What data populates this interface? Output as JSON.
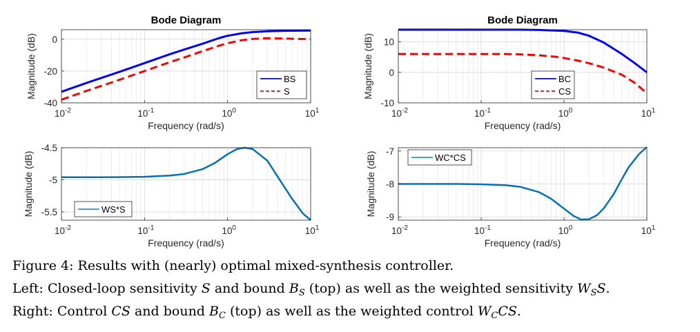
{
  "colors": {
    "blue": "#0000ff",
    "red": "#ff0000",
    "matlab_blue": "#0072bd"
  },
  "chart_data": [
    {
      "type": "line",
      "title": "Bode Diagram",
      "xlabel": "Frequency  (rad/s)",
      "ylabel": "Magnitude (dB)",
      "xscale": "log",
      "xlim": [
        0.01,
        10
      ],
      "ylim": [
        -40,
        6
      ],
      "yticks": [
        -40,
        -20,
        0
      ],
      "xtick_labels": [
        {
          "base": "10",
          "exp": "-2"
        },
        {
          "base": "10",
          "exp": "-1"
        },
        {
          "base": "10",
          "exp": "0"
        },
        {
          "base": "10",
          "exp": "1"
        }
      ],
      "grid": true,
      "legend_position": "bottom-right",
      "series": [
        {
          "name": "BS",
          "color": "#0000ff",
          "style": "solid",
          "width": 3,
          "x": [
            0.01,
            0.02,
            0.05,
            0.1,
            0.2,
            0.3,
            0.5,
            0.8,
            1,
            1.5,
            2,
            3,
            5,
            10
          ],
          "y": [
            -33,
            -27.5,
            -20.5,
            -15,
            -9.5,
            -6.5,
            -2.8,
            0.8,
            2.2,
            3.8,
            4.5,
            5,
            5.3,
            5.5
          ]
        },
        {
          "name": "S",
          "color": "#ff0000",
          "style": "dashed",
          "width": 3,
          "x": [
            0.01,
            0.02,
            0.05,
            0.1,
            0.2,
            0.3,
            0.5,
            0.8,
            1,
            1.5,
            2,
            3,
            5,
            10
          ],
          "y": [
            -38,
            -32.5,
            -25.5,
            -20,
            -14.5,
            -11.5,
            -7.5,
            -4,
            -2.5,
            -0.6,
            0.2,
            0.6,
            0.4,
            0
          ]
        }
      ]
    },
    {
      "type": "line",
      "title": "Bode Diagram",
      "xlabel": "Frequency  (rad/s)",
      "ylabel": "Magnitude (dB)",
      "xscale": "log",
      "xlim": [
        0.01,
        10
      ],
      "ylim": [
        -10,
        14
      ],
      "yticks": [
        -10,
        0,
        10
      ],
      "xtick_labels": [
        {
          "base": "10",
          "exp": "-2"
        },
        {
          "base": "10",
          "exp": "-1"
        },
        {
          "base": "10",
          "exp": "0"
        },
        {
          "base": "10",
          "exp": "1"
        }
      ],
      "grid": true,
      "legend_position": "bottom-right",
      "series": [
        {
          "name": "BC",
          "color": "#0000ff",
          "style": "solid",
          "width": 3,
          "x": [
            0.01,
            0.05,
            0.1,
            0.3,
            0.5,
            1,
            1.5,
            2,
            3,
            5,
            7,
            10
          ],
          "y": [
            14,
            14,
            14,
            14,
            13.9,
            13.6,
            13,
            12,
            9.8,
            6,
            3.2,
            0
          ]
        },
        {
          "name": "CS",
          "color": "#ff0000",
          "style": "dashed",
          "width": 3,
          "x": [
            0.01,
            0.05,
            0.1,
            0.2,
            0.3,
            0.5,
            0.8,
            1,
            1.5,
            2,
            3,
            5,
            7,
            10
          ],
          "y": [
            6,
            6,
            6,
            6,
            5.9,
            5.6,
            5.1,
            4.7,
            3.8,
            3,
            1.6,
            -0.8,
            -3.3,
            -6.8
          ]
        }
      ]
    },
    {
      "type": "line",
      "title": "",
      "xlabel": "Frequency  (rad/s)",
      "ylabel": "Magnitude (dB)",
      "xscale": "log",
      "xlim": [
        0.01,
        10
      ],
      "ylim": [
        -5.63,
        -4.5
      ],
      "yticks": [
        -5.5,
        -5,
        -4.5
      ],
      "xtick_labels": [
        {
          "base": "10",
          "exp": "-2"
        },
        {
          "base": "10",
          "exp": "-1"
        },
        {
          "base": "10",
          "exp": "0"
        },
        {
          "base": "10",
          "exp": "1"
        }
      ],
      "grid": true,
      "legend_position": "bottom-left",
      "series": [
        {
          "name": "WS*S",
          "color": "#0072bd",
          "style": "solid",
          "width": 2.5,
          "x": [
            0.01,
            0.03,
            0.05,
            0.1,
            0.2,
            0.3,
            0.5,
            0.7,
            1,
            1.3,
            1.6,
            2,
            3,
            4,
            6,
            8,
            10
          ],
          "y": [
            -4.96,
            -4.96,
            -4.958,
            -4.953,
            -4.935,
            -4.91,
            -4.835,
            -4.74,
            -4.6,
            -4.52,
            -4.5,
            -4.52,
            -4.7,
            -4.95,
            -5.3,
            -5.52,
            -5.63
          ]
        }
      ]
    },
    {
      "type": "line",
      "title": "",
      "xlabel": "Frequency  (rad/s)",
      "ylabel": "Magnitude (dB)",
      "xscale": "log",
      "xlim": [
        0.01,
        10
      ],
      "ylim": [
        -9.1,
        -6.9
      ],
      "yticks": [
        -9,
        -8,
        -7
      ],
      "xtick_labels": [
        {
          "base": "10",
          "exp": "-2"
        },
        {
          "base": "10",
          "exp": "-1"
        },
        {
          "base": "10",
          "exp": "0"
        },
        {
          "base": "10",
          "exp": "1"
        }
      ],
      "grid": true,
      "legend_position": "top-left",
      "series": [
        {
          "name": "WC*CS",
          "color": "#0072bd",
          "style": "solid",
          "width": 2.5,
          "x": [
            0.01,
            0.03,
            0.05,
            0.1,
            0.2,
            0.3,
            0.5,
            0.7,
            1,
            1.3,
            1.6,
            2,
            2.5,
            3,
            4,
            5,
            6,
            8,
            10
          ],
          "y": [
            -8,
            -8,
            -8,
            -8.01,
            -8.04,
            -8.09,
            -8.25,
            -8.45,
            -8.75,
            -8.97,
            -9.08,
            -9.07,
            -8.95,
            -8.75,
            -8.3,
            -7.85,
            -7.5,
            -7.1,
            -6.88
          ]
        }
      ]
    }
  ],
  "caption": {
    "line1": "Figure 4: Results with (nearly) optimal mixed-synthesis controller.",
    "line2": {
      "a": "Left: Closed-loop sensitivity ",
      "S1": "S",
      "b": " and bound ",
      "B": "B",
      "Bsub": "S",
      "c": " (top) as well as the weighted sensitivity ",
      "W": "W",
      "Wsub": "S",
      "S2": "S",
      "d": "."
    },
    "line3": {
      "a": "Right: Control ",
      "CS": "CS",
      "b": " and bound ",
      "B": "B",
      "Bsub": "C",
      "c": " (top) as well as the weighted control ",
      "W": "W",
      "Wsub": "C",
      "CS2": "CS",
      "d": "."
    }
  }
}
